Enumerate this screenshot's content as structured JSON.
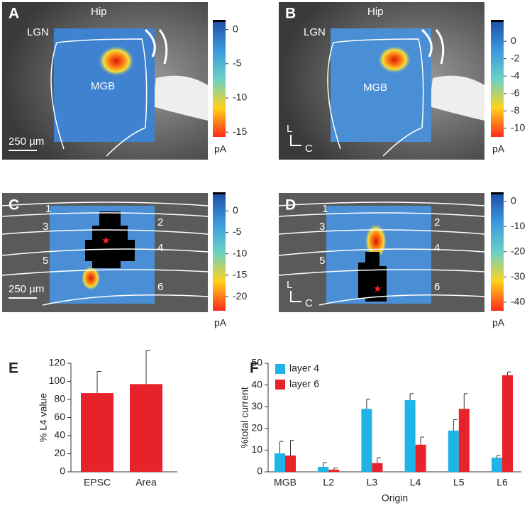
{
  "panels": [
    {
      "label": "A",
      "annotations": [
        "Hip",
        "LGN",
        "MGB",
        "250 µm"
      ],
      "colorbar": {
        "lim": [
          -15.7,
          1.2
        ],
        "ticks": [
          0,
          -5,
          -10,
          -15
        ],
        "unit": "pA"
      }
    },
    {
      "label": "B",
      "annotations": [
        "Hip",
        "LGN",
        "MGB",
        "L",
        "C"
      ],
      "colorbar": {
        "lim": [
          -11,
          2.3
        ],
        "ticks": [
          0,
          -2,
          -4,
          -6,
          -8,
          -10
        ],
        "unit": "pA"
      }
    },
    {
      "label": "C",
      "annotations": [
        "1",
        "2",
        "3",
        "4",
        "5",
        "6",
        "250 µm"
      ],
      "colorbar": {
        "lim": [
          -23.3,
          4
        ],
        "ticks": [
          0,
          -5,
          -10,
          -15,
          -20
        ],
        "unit": "pA"
      }
    },
    {
      "label": "D",
      "annotations": [
        "1",
        "2",
        "3",
        "4",
        "5",
        "6",
        "L",
        "C"
      ],
      "colorbar": {
        "lim": [
          -43.4,
          3
        ],
        "ticks": [
          0,
          -10,
          -20,
          -30,
          -40
        ],
        "unit": "pA"
      }
    }
  ],
  "chart_data": [
    {
      "type": "bar",
      "panel": "E",
      "ylabel": "% L4 value",
      "categories": [
        "EPSC",
        "Area"
      ],
      "values": [
        87,
        97
      ],
      "errors": [
        24,
        37
      ],
      "color": "#e8222a",
      "ylim": [
        0,
        120
      ],
      "yticks": [
        0,
        20,
        40,
        60,
        80,
        100,
        120
      ]
    },
    {
      "type": "bar",
      "panel": "F",
      "ylabel": "%total current",
      "xlabel": "Origin",
      "categories": [
        "MGB",
        "L2",
        "L3",
        "L4",
        "L5",
        "L6"
      ],
      "series": [
        {
          "name": "layer 4",
          "color": "#1fb4e8",
          "values": [
            8.5,
            2.3,
            29,
            33,
            19,
            6.5
          ],
          "errors": [
            5.5,
            2,
            4.5,
            3,
            5,
            1
          ]
        },
        {
          "name": "layer 6",
          "color": "#e8222a",
          "values": [
            7.5,
            1,
            4,
            12.5,
            29,
            44.5
          ],
          "errors": [
            7,
            0.7,
            2.5,
            3.5,
            7,
            1.5
          ]
        }
      ],
      "ylim": [
        0,
        50
      ],
      "yticks": [
        0,
        10,
        20,
        30,
        40,
        50
      ],
      "legend": "upper left"
    }
  ]
}
